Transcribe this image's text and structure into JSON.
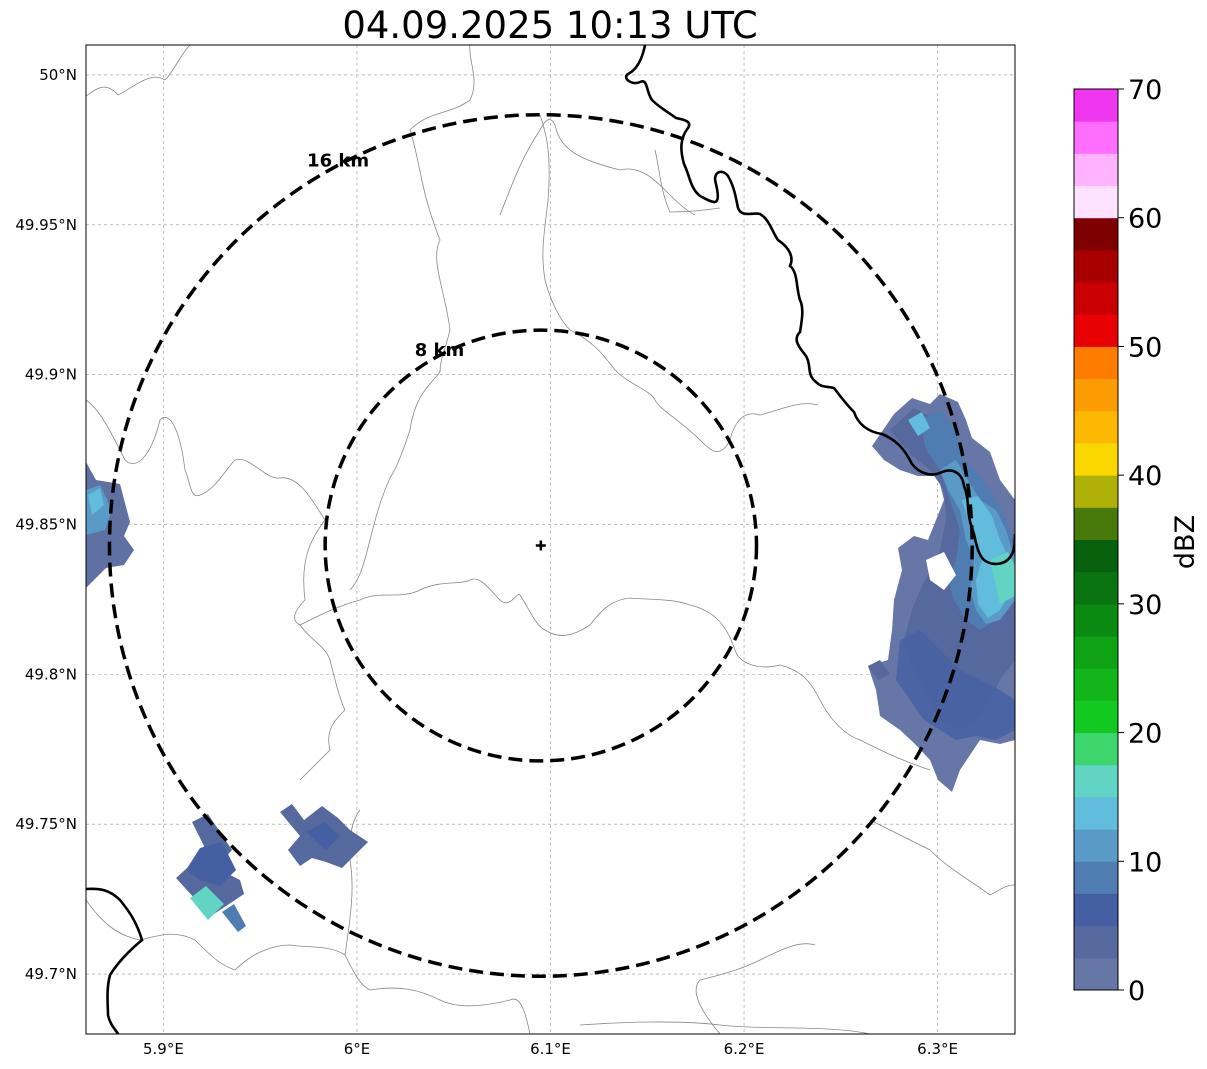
{
  "title": "04.09.2025 10:13 UTC",
  "map": {
    "lon_ticks": [
      {
        "value": 5.9,
        "label": "5.9°E"
      },
      {
        "value": 6.0,
        "label": "6°E"
      },
      {
        "value": 6.1,
        "label": "6.1°E"
      },
      {
        "value": 6.2,
        "label": "6.2°E"
      },
      {
        "value": 6.3,
        "label": "6.3°E"
      }
    ],
    "lat_ticks": [
      {
        "value": 50.0,
        "label": "50°N"
      },
      {
        "value": 49.95,
        "label": "49.95°N"
      },
      {
        "value": 49.9,
        "label": "49.9°N"
      },
      {
        "value": 49.85,
        "label": "49.85°N"
      },
      {
        "value": 49.8,
        "label": "49.8°N"
      },
      {
        "value": 49.75,
        "label": "49.75°N"
      },
      {
        "value": 49.7,
        "label": "49.7°N"
      }
    ],
    "lon_range": [
      5.86,
      6.34
    ],
    "lat_range": [
      49.68,
      50.01
    ],
    "gridlines": true,
    "radar_site": {
      "lon": 6.095,
      "lat": 49.843,
      "marker": "plus"
    },
    "range_rings": [
      {
        "radius_km": 8,
        "label": "8 km"
      },
      {
        "radius_km": 16,
        "label": "16 km"
      }
    ]
  },
  "colorbar": {
    "label": "dBZ",
    "min": 0,
    "max": 70,
    "tick_labels": [
      "0",
      "10",
      "20",
      "30",
      "40",
      "50",
      "60",
      "70"
    ],
    "colors": [
      "#6676a6",
      "#56699e",
      "#4560a2",
      "#4f7cb1",
      "#5a9ac6",
      "#62bcdb",
      "#62d4c4",
      "#3dd66c",
      "#12c921",
      "#12b61b",
      "#0ea214",
      "#0b8a12",
      "#0a7410",
      "#06600c",
      "#477a0b",
      "#afb006",
      "#fbd700",
      "#fcb800",
      "#fd9b02",
      "#fe7c00",
      "#e90002",
      "#c90001",
      "#a80000",
      "#7f0000",
      "#ffe2ff",
      "#ffb2ff",
      "#ff6eff",
      "#f037ef"
    ]
  }
}
